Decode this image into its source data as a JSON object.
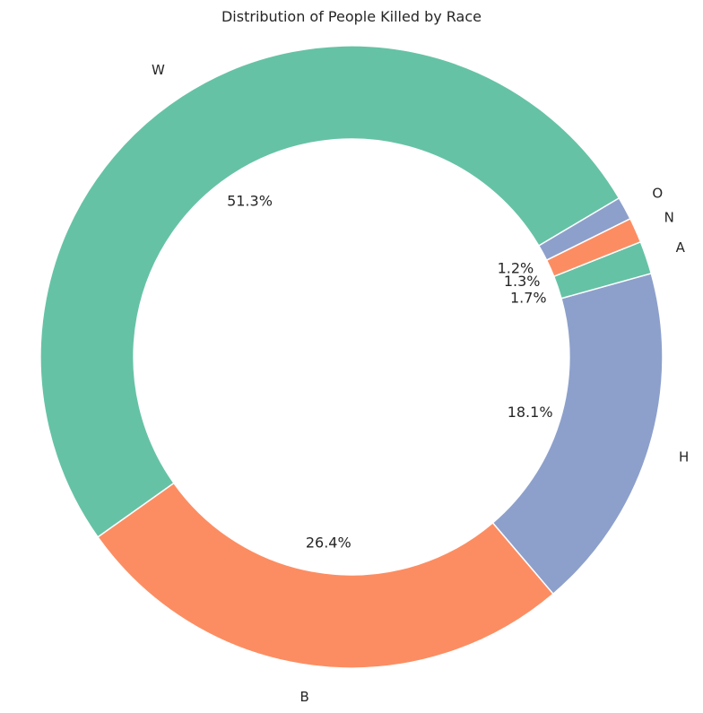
{
  "chart_data": {
    "type": "pie",
    "title": "Distribution of People Killed by Race",
    "categories": [
      "W",
      "B",
      "H",
      "A",
      "N",
      "O"
    ],
    "values": [
      51.3,
      26.4,
      18.1,
      1.7,
      1.3,
      1.2
    ],
    "labels": [
      "51.3%",
      "26.4%",
      "18.1%",
      "1.7%",
      "1.3%",
      "1.2%"
    ],
    "colors": [
      "#66c2a5",
      "#fc8d62",
      "#8da0cb",
      "#66c2a5",
      "#fc8d62",
      "#8da0cb"
    ],
    "start_angle_deg": 30.7,
    "direction": "counterclockwise",
    "hole_ratio": 0.7,
    "legend": "none"
  }
}
